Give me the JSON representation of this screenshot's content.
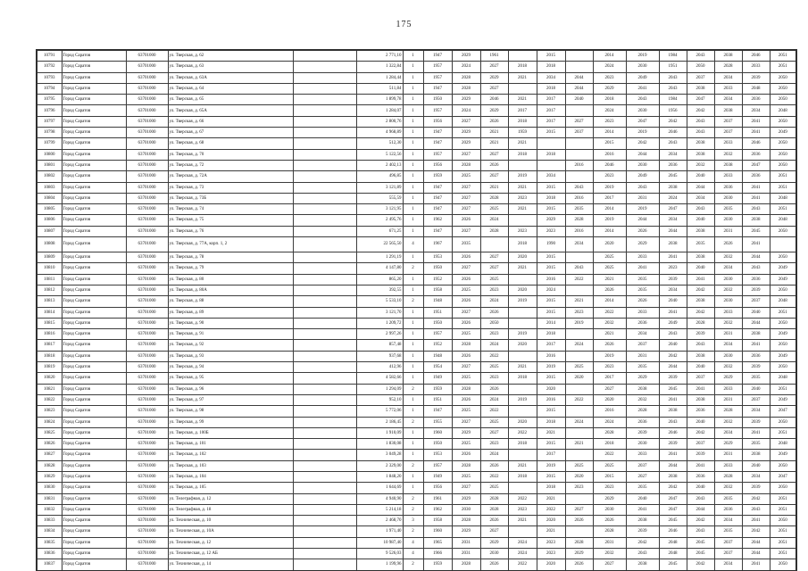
{
  "page": {
    "number": "175"
  },
  "table": {
    "municipality": "Город Саратов",
    "code": "63701000",
    "rows": [
      {
        "n": "10791",
        "addr": "ул. Тверская, д. 62",
        "note": "",
        "area": "2 771,10",
        "fl": "1",
        "years": [
          "1947",
          "2029",
          "1961",
          "",
          "2015",
          "",
          "2014",
          "2019",
          "1984",
          "2043",
          "2038",
          "2046",
          "2051"
        ]
      },
      {
        "n": "10792",
        "addr": "ул. Тверская, д. 63",
        "note": "",
        "area": "1 322,84",
        "fl": "1",
        "years": [
          "1957",
          "2024",
          "2027",
          "2018",
          "2018",
          "",
          "2024",
          "2030",
          "1951",
          "2050",
          "2028",
          "2033",
          "2051"
        ]
      },
      {
        "n": "10793",
        "addr": "ул. Тверская, д. 63А",
        "note": "",
        "area": "1 284,44",
        "fl": "1",
        "years": [
          "1957",
          "2028",
          "2029",
          "2021",
          "2034",
          "2044",
          "2023",
          "2049",
          "2043",
          "2037",
          "2034",
          "2039",
          "2050"
        ]
      },
      {
        "n": "10794",
        "addr": "ул. Тверская, д. 64",
        "note": "",
        "area": "511,84",
        "fl": "1",
        "years": [
          "1947",
          "2028",
          "2027",
          "",
          "2018",
          "2044",
          "2029",
          "2041",
          "2043",
          "2038",
          "2033",
          "2048",
          "2050"
        ]
      },
      {
        "n": "10795",
        "addr": "ул. Тверская, д. 65",
        "note": "",
        "area": "1 899,78",
        "fl": "1",
        "years": [
          "1950",
          "2029",
          "2046",
          "2021",
          "2017",
          "2040",
          "2018",
          "2043",
          "1984",
          "2047",
          "2034",
          "2036",
          "2050"
        ]
      },
      {
        "n": "10796",
        "addr": "ул. Тверская, д. 65А",
        "note": "",
        "area": "1 284,07",
        "fl": "1",
        "years": [
          "1957",
          "2024",
          "2029",
          "2017",
          "2017",
          "",
          "2024",
          "2030",
          "1956",
          "2042",
          "2038",
          "2034",
          "2048"
        ]
      },
      {
        "n": "10797",
        "addr": "ул. Тверская, д. 66",
        "note": "",
        "area": "2 800,76",
        "fl": "1",
        "years": [
          "1956",
          "2027",
          "2026",
          "2018",
          "2017",
          "2027",
          "2023",
          "2047",
          "2042",
          "2043",
          "2037",
          "2041",
          "2050"
        ]
      },
      {
        "n": "10798",
        "addr": "ул. Тверская, д. 67",
        "note": "",
        "area": "4 968,89",
        "fl": "1",
        "years": [
          "1947",
          "2029",
          "2021",
          "1959",
          "2015",
          "2037",
          "2014",
          "2019",
          "2046",
          "2043",
          "2037",
          "2041",
          "2049"
        ]
      },
      {
        "n": "10799",
        "addr": "ул. Тверская, д. 68",
        "note": "",
        "area": "512,30",
        "fl": "1",
        "years": [
          "1947",
          "2029",
          "2021",
          "2021",
          "",
          "",
          "2015",
          "2042",
          "2043",
          "2038",
          "2033",
          "2046",
          "2050"
        ]
      },
      {
        "n": "10800",
        "addr": "ул. Тверская, д. 70",
        "note": "",
        "area": "5 122,56",
        "fl": "1",
        "years": [
          "1957",
          "2027",
          "2027",
          "2018",
          "2018",
          "",
          "2016",
          "2044",
          "2034",
          "2038",
          "2032",
          "2036",
          "2050"
        ]
      },
      {
        "n": "10801",
        "addr": "ул. Тверская, д. 72",
        "note": "",
        "area": "2 402,13",
        "fl": "1",
        "years": [
          "1956",
          "2028",
          "2026",
          "",
          "",
          "2016",
          "2046",
          "2030",
          "2036",
          "2032",
          "2038",
          "2047",
          "2050"
        ]
      },
      {
        "n": "10802",
        "addr": "ул. Тверская, д. 72А",
        "note": "",
        "area": "496,85",
        "fl": "1",
        "years": [
          "1959",
          "2025",
          "2027",
          "2019",
          "2034",
          "",
          "2023",
          "2049",
          "2045",
          "2040",
          "2033",
          "2036",
          "2051"
        ]
      },
      {
        "n": "10803",
        "addr": "ул. Тверская, д. 73",
        "note": "",
        "area": "3 121,89",
        "fl": "1",
        "years": [
          "1947",
          "2027",
          "2021",
          "2021",
          "2015",
          "2043",
          "2019",
          "2043",
          "2038",
          "2044",
          "2036",
          "2041",
          "2051"
        ]
      },
      {
        "n": "10804",
        "addr": "ул. Тверская, д. 73Б",
        "note": "",
        "area": "555,59",
        "fl": "1",
        "years": [
          "1947",
          "2027",
          "2028",
          "2023",
          "2018",
          "2016",
          "2017",
          "2031",
          "2024",
          "2034",
          "2030",
          "2041",
          "2048"
        ]
      },
      {
        "n": "10805",
        "addr": "ул. Тверская, д. 74",
        "note": "",
        "area": "3 121,95",
        "fl": "1",
        "years": [
          "1947",
          "2027",
          "2025",
          "2021",
          "2015",
          "2035",
          "2014",
          "2019",
          "2047",
          "2043",
          "2035",
          "2043",
          "2051"
        ]
      },
      {
        "n": "10806",
        "addr": "ул. Тверская, д. 75",
        "note": "",
        "area": "2 495,76",
        "fl": "1",
        "years": [
          "1962",
          "2026",
          "2024",
          "",
          "2029",
          "2028",
          "2019",
          "2044",
          "2034",
          "2040",
          "2030",
          "2038",
          "2048"
        ]
      },
      {
        "n": "10807",
        "addr": "ул. Тверская, д. 76",
        "note": "",
        "area": "671,25",
        "fl": "1",
        "years": [
          "1947",
          "2027",
          "2028",
          "2023",
          "2023",
          "2016",
          "2014",
          "2026",
          "2044",
          "2038",
          "2031",
          "2045",
          "2050"
        ]
      },
      {
        "n": "10808",
        "addr": "ул. Тверская, д. 77А, корп. 1, 2",
        "note": "",
        "area": "22 565,50",
        "fl": "4",
        "tall": true,
        "years": [
          "1967",
          "2035",
          "",
          "2018",
          "1990",
          "2034",
          "2020",
          "2029",
          "2038",
          "2035",
          "2026",
          "2041",
          ""
        ]
      },
      {
        "n": "10809",
        "addr": "ул. Тверская, д. 78",
        "note": "",
        "area": "1 291,19",
        "fl": "1",
        "years": [
          "1953",
          "2026",
          "2027",
          "2020",
          "2015",
          "",
          "2025",
          "2033",
          "2041",
          "2038",
          "2032",
          "2044",
          "2050"
        ]
      },
      {
        "n": "10810",
        "addr": "ул. Тверская, д. 79",
        "note": "",
        "area": "4 147,80",
        "fl": "2",
        "years": [
          "1950",
          "2027",
          "2027",
          "2021",
          "2015",
          "2043",
          "2025",
          "2041",
          "2023",
          "2040",
          "2034",
          "2043",
          "2049"
        ]
      },
      {
        "n": "10811",
        "addr": "ул. Тверская, д. 80",
        "note": "",
        "area": "865,20",
        "fl": "1",
        "years": [
          "1952",
          "2026",
          "2025",
          "",
          "2016",
          "2022",
          "2021",
          "2035",
          "2039",
          "2041",
          "2030",
          "2036",
          "2049"
        ]
      },
      {
        "n": "10812",
        "addr": "ул. Тверская, д. 80А",
        "note": "",
        "area": "392,55",
        "fl": "1",
        "years": [
          "1958",
          "2025",
          "2023",
          "2020",
          "2024",
          "",
          "2026",
          "2035",
          "2034",
          "2042",
          "2032",
          "2039",
          "2050"
        ]
      },
      {
        "n": "10813",
        "addr": "ул. Тверская, д. 88",
        "note": "",
        "area": "5 533,10",
        "fl": "2",
        "years": [
          "1948",
          "2026",
          "2024",
          "2019",
          "2015",
          "2021",
          "2014",
          "2026",
          "2040",
          "2038",
          "2030",
          "2037",
          "2048"
        ]
      },
      {
        "n": "10814",
        "addr": "ул. Тверская, д. 89",
        "note": "",
        "area": "3 121,70",
        "fl": "1",
        "years": [
          "1951",
          "2027",
          "2026",
          "",
          "2015",
          "2023",
          "2022",
          "2033",
          "2041",
          "2042",
          "2033",
          "2040",
          "2051"
        ]
      },
      {
        "n": "10815",
        "addr": "ул. Тверская, д. 90",
        "note": "",
        "area": "1 209,72",
        "fl": "1",
        "years": [
          "1950",
          "2026",
          "2050",
          "",
          "2014",
          "2019",
          "2032",
          "2036",
          "2049",
          "2028",
          "2032",
          "2044",
          "2050"
        ]
      },
      {
        "n": "10816",
        "addr": "ул. Тверская, д. 91",
        "note": "",
        "area": "2 997,26",
        "fl": "1",
        "years": [
          "1957",
          "2025",
          "2023",
          "2019",
          "2018",
          "",
          "2021",
          "2034",
          "2043",
          "2039",
          "2031",
          "2038",
          "2049"
        ]
      },
      {
        "n": "10817",
        "addr": "ул. Тверская, д. 92",
        "note": "",
        "area": "857,48",
        "fl": "1",
        "years": [
          "1952",
          "2028",
          "2024",
          "2020",
          "2017",
          "2024",
          "2026",
          "2037",
          "2040",
          "2043",
          "2034",
          "2041",
          "2050"
        ]
      },
      {
        "n": "10818",
        "addr": "ул. Тверская, д. 93",
        "note": "",
        "area": "937,68",
        "fl": "1",
        "years": [
          "1948",
          "2026",
          "2022",
          "",
          "2016",
          "",
          "2019",
          "2031",
          "2042",
          "2038",
          "2030",
          "2036",
          "2049"
        ]
      },
      {
        "n": "10819",
        "addr": "ул. Тверская, д. 94",
        "note": "",
        "area": "412,96",
        "fl": "1",
        "years": [
          "1954",
          "2027",
          "2025",
          "2021",
          "2019",
          "2025",
          "2023",
          "2035",
          "2044",
          "2040",
          "2032",
          "2039",
          "2050"
        ]
      },
      {
        "n": "10820",
        "addr": "ул. Тверская, д. 95",
        "note": "",
        "area": "4 582,66",
        "fl": "1",
        "years": [
          "1949",
          "2025",
          "2023",
          "2018",
          "2015",
          "2020",
          "2017",
          "2029",
          "2039",
          "2037",
          "2029",
          "2035",
          "2048"
        ]
      },
      {
        "n": "10821",
        "addr": "ул. Тверская, д. 96",
        "note": "",
        "area": "1 294,09",
        "fl": "2",
        "years": [
          "1959",
          "2028",
          "2026",
          "",
          "2020",
          "",
          "2027",
          "2038",
          "2045",
          "2041",
          "2033",
          "2040",
          "2051"
        ]
      },
      {
        "n": "10822",
        "addr": "ул. Тверская, д. 97",
        "note": "",
        "area": "952,10",
        "fl": "1",
        "years": [
          "1951",
          "2026",
          "2024",
          "2019",
          "2016",
          "2022",
          "2020",
          "2032",
          "2041",
          "2038",
          "2031",
          "2037",
          "2049"
        ]
      },
      {
        "n": "10823",
        "addr": "ул. Тверская, д. 98",
        "note": "",
        "area": "5 772,06",
        "fl": "1",
        "years": [
          "1947",
          "2025",
          "2022",
          "",
          "2015",
          "",
          "2016",
          "2028",
          "2038",
          "2036",
          "2028",
          "2034",
          "2047"
        ]
      },
      {
        "n": "10824",
        "addr": "ул. Тверская, д. 99",
        "note": "",
        "area": "2 186,45",
        "fl": "2",
        "years": [
          "1955",
          "2027",
          "2025",
          "2020",
          "2018",
          "2024",
          "2024",
          "2036",
          "2043",
          "2040",
          "2032",
          "2039",
          "2050"
        ]
      },
      {
        "n": "10825",
        "addr": "ул. Тверская, д. 100Б",
        "note": "",
        "area": "1 910,09",
        "fl": "1",
        "years": [
          "1960",
          "2029",
          "2027",
          "2022",
          "2021",
          "",
          "2028",
          "2039",
          "2046",
          "2042",
          "2034",
          "2041",
          "2051"
        ]
      },
      {
        "n": "10826",
        "addr": "ул. Тверская, д. 101",
        "note": "",
        "area": "1 830,08",
        "fl": "1",
        "years": [
          "1950",
          "2025",
          "2023",
          "2018",
          "2015",
          "2021",
          "2018",
          "2030",
          "2039",
          "2037",
          "2029",
          "2035",
          "2048"
        ]
      },
      {
        "n": "10827",
        "addr": "ул. Тверская, д. 102",
        "note": "",
        "area": "3 049,28",
        "fl": "1",
        "years": [
          "1953",
          "2026",
          "2024",
          "",
          "2017",
          "",
          "2022",
          "2033",
          "2041",
          "2039",
          "2031",
          "2038",
          "2049"
        ]
      },
      {
        "n": "10828",
        "addr": "ул. Тверская, д. 103",
        "note": "",
        "area": "2 329,00",
        "fl": "2",
        "years": [
          "1957",
          "2028",
          "2026",
          "2021",
          "2019",
          "2025",
          "2025",
          "2037",
          "2044",
          "2041",
          "2033",
          "2040",
          "2050"
        ]
      },
      {
        "n": "10829",
        "addr": "ул. Тверская, д. 104",
        "note": "",
        "area": "1 848,20",
        "fl": "1",
        "years": [
          "1949",
          "2025",
          "2022",
          "2018",
          "2015",
          "2020",
          "2015",
          "2027",
          "2038",
          "2036",
          "2028",
          "2034",
          "2047"
        ]
      },
      {
        "n": "10830",
        "addr": "ул. Тверская, д. 105",
        "note": "",
        "area": "1 644,69",
        "fl": "1",
        "years": [
          "1956",
          "2027",
          "2025",
          "",
          "2018",
          "2023",
          "2023",
          "2035",
          "2042",
          "2040",
          "2032",
          "2039",
          "2050"
        ]
      },
      {
        "n": "10831",
        "addr": "ул. Телеграфная, д. 12",
        "note": "",
        "area": "4 940,90",
        "fl": "2",
        "years": [
          "1961",
          "2029",
          "2028",
          "2022",
          "2021",
          "",
          "2029",
          "2040",
          "2047",
          "2043",
          "2035",
          "2042",
          "2051"
        ]
      },
      {
        "n": "10832",
        "addr": "ул. Телеграфная, д. 18",
        "note": "",
        "area": "5 214,18",
        "fl": "2",
        "years": [
          "1962",
          "2030",
          "2028",
          "2023",
          "2022",
          "2027",
          "2030",
          "2041",
          "2047",
          "2044",
          "2036",
          "2043",
          "2051"
        ]
      },
      {
        "n": "10833",
        "addr": "ул. Техническая, д. 10",
        "note": "",
        "area": "2 468,70",
        "fl": "3",
        "years": [
          "1958",
          "2028",
          "2026",
          "2021",
          "2020",
          "2026",
          "2026",
          "2038",
          "2045",
          "2042",
          "2034",
          "2041",
          "2050"
        ]
      },
      {
        "n": "10834",
        "addr": "ул. Техническая, д. 10А",
        "note": "",
        "area": "1 971,40",
        "fl": "2",
        "years": [
          "1960",
          "2029",
          "2027",
          "",
          "2021",
          "",
          "2028",
          "2039",
          "2046",
          "2043",
          "2035",
          "2042",
          "2051"
        ]
      },
      {
        "n": "10835",
        "addr": "ул. Техническая, д. 12",
        "note": "",
        "area": "10 987,40",
        "fl": "4",
        "years": [
          "1965",
          "2031",
          "2029",
          "2024",
          "2023",
          "2028",
          "2031",
          "2042",
          "2048",
          "2045",
          "2037",
          "2044",
          "2051"
        ]
      },
      {
        "n": "10836",
        "addr": "ул. Техническая, д. 12 АБ",
        "note": "",
        "area": "9 526,03",
        "fl": "4",
        "years": [
          "1966",
          "2031",
          "2030",
          "2024",
          "2023",
          "2029",
          "2032",
          "2043",
          "2048",
          "2045",
          "2037",
          "2044",
          "2051"
        ]
      },
      {
        "n": "10837",
        "addr": "ул. Техническая, д. 14",
        "note": "",
        "area": "1 199,96",
        "fl": "2",
        "years": [
          "1959",
          "2028",
          "2026",
          "2022",
          "2020",
          "2026",
          "2027",
          "2038",
          "2045",
          "2042",
          "2034",
          "2041",
          "2050"
        ]
      }
    ]
  }
}
